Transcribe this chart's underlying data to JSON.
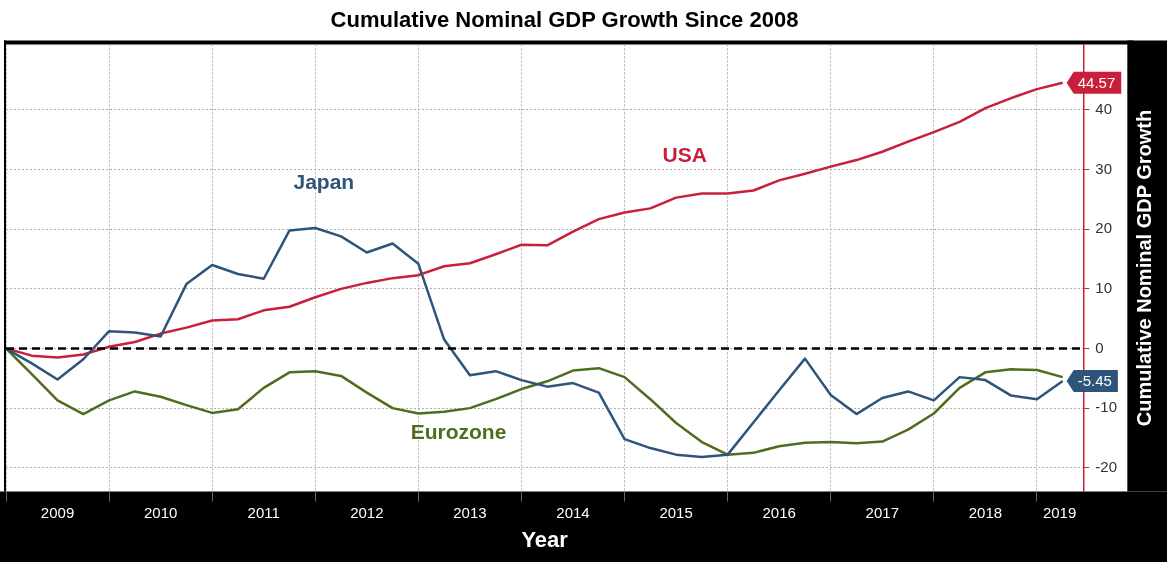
{
  "chart_data": {
    "type": "line",
    "title": "Cumulative Nominal GDP Growth Since 2008",
    "xlabel": "Year",
    "ylabel": "Cumulative Nominal GDP Growth",
    "x": [
      2009,
      2009.25,
      2009.5,
      2009.75,
      2010,
      2010.25,
      2010.5,
      2010.75,
      2011,
      2011.25,
      2011.5,
      2011.75,
      2012,
      2012.25,
      2012.5,
      2012.75,
      2013,
      2013.25,
      2013.5,
      2013.75,
      2014,
      2014.25,
      2014.5,
      2014.75,
      2015,
      2015.25,
      2015.5,
      2015.75,
      2016,
      2016.25,
      2016.5,
      2016.75,
      2017,
      2017.25,
      2017.5,
      2017.75,
      2018,
      2018.25,
      2018.5,
      2018.75,
      2019,
      2019.25
    ],
    "series": [
      {
        "name": "Japan",
        "color": "#2f5479",
        "values": [
          0,
          -2.5,
          -5.2,
          -1.8,
          2.9,
          2.7,
          2.0,
          10.8,
          14.0,
          12.5,
          11.7,
          19.8,
          20.2,
          18.8,
          16.1,
          17.6,
          14.2,
          1.5,
          -4.5,
          -3.8,
          -5.3,
          -6.4,
          -5.8,
          -7.4,
          -15.2,
          -16.7,
          -17.8,
          -18.2,
          -17.8,
          -12.4,
          -7.0,
          -1.7,
          -7.8,
          -11.0,
          -8.3,
          -7.2,
          -8.7,
          -4.8,
          -5.3,
          -7.9,
          -8.5,
          -5.45
        ],
        "value_labels": [
          null,
          null,
          null,
          null,
          null,
          null,
          null,
          null,
          null,
          null,
          null,
          null,
          null,
          null,
          null,
          null,
          null,
          null,
          null,
          null,
          null,
          null,
          null,
          null,
          null,
          null,
          null,
          null,
          null,
          null,
          null,
          null,
          null,
          null,
          null,
          null,
          null,
          null,
          null,
          null,
          null,
          "-5.45"
        ]
      },
      {
        "name": "USA",
        "color": "#c8203a",
        "values": [
          0,
          -1.2,
          -1.5,
          -1.0,
          0.3,
          1.1,
          2.5,
          3.5,
          4.7,
          4.9,
          6.4,
          7.0,
          8.6,
          10.0,
          11.0,
          11.8,
          12.3,
          13.8,
          14.3,
          15.8,
          17.4,
          17.3,
          19.6,
          21.7,
          22.8,
          23.5,
          25.3,
          26.0,
          26.0,
          26.5,
          28.2,
          29.3,
          30.5,
          31.6,
          33.0,
          34.7,
          36.3,
          38.0,
          40.3,
          42.0,
          43.5,
          44.57
        ],
        "value_labels": [
          null,
          null,
          null,
          null,
          null,
          null,
          null,
          null,
          null,
          null,
          null,
          null,
          null,
          null,
          null,
          null,
          null,
          null,
          null,
          null,
          null,
          null,
          null,
          null,
          null,
          null,
          null,
          null,
          null,
          null,
          null,
          null,
          null,
          null,
          null,
          null,
          null,
          null,
          null,
          null,
          null,
          "44.57"
        ]
      },
      {
        "name": "Eurozone",
        "color": "#4e6e1e",
        "values": [
          0,
          -4.3,
          -8.7,
          -11.0,
          -8.7,
          -7.2,
          -8.1,
          -9.5,
          -10.8,
          -10.2,
          -6.6,
          -4.0,
          -3.8,
          -4.6,
          -7.4,
          -10.0,
          -10.9,
          -10.6,
          -10.0,
          -8.5,
          -6.8,
          -5.5,
          -3.7,
          -3.3,
          -4.8,
          -8.5,
          -12.5,
          -15.7,
          -17.8,
          -17.5,
          -16.4,
          -15.8,
          -15.7,
          -15.9,
          -15.6,
          -13.6,
          -10.9,
          -6.6,
          -4.0,
          -3.5,
          -3.6,
          -4.8
        ]
      }
    ],
    "xlim": [
      2009,
      2019.45
    ],
    "xticks": [
      {
        "value": 2009,
        "label": null
      },
      {
        "value": 2009.5,
        "label": "2009"
      },
      {
        "value": 2010,
        "label": null
      },
      {
        "value": 2010.5,
        "label": "2010"
      },
      {
        "value": 2011,
        "label": null
      },
      {
        "value": 2011.5,
        "label": "2011"
      },
      {
        "value": 2012,
        "label": null
      },
      {
        "value": 2012.5,
        "label": "2012"
      },
      {
        "value": 2013,
        "label": null
      },
      {
        "value": 2013.5,
        "label": "2013"
      },
      {
        "value": 2014,
        "label": null
      },
      {
        "value": 2014.5,
        "label": "2014"
      },
      {
        "value": 2015,
        "label": null
      },
      {
        "value": 2015.5,
        "label": "2015"
      },
      {
        "value": 2016,
        "label": null
      },
      {
        "value": 2016.5,
        "label": "2016"
      },
      {
        "value": 2017,
        "label": null
      },
      {
        "value": 2017.5,
        "label": "2017"
      },
      {
        "value": 2018,
        "label": null
      },
      {
        "value": 2018.5,
        "label": "2018"
      },
      {
        "value": 2019,
        "label": null
      },
      {
        "value": 2019.22,
        "label": "2019"
      }
    ],
    "ylim": [
      -24,
      51
    ],
    "yticks": [
      -20,
      -10,
      0,
      10,
      20,
      30,
      40
    ],
    "ref_lines": [
      {
        "axis": "y",
        "value": 0,
        "color": "#000000",
        "line_style": "dashed"
      }
    ],
    "grid": true,
    "legend": false,
    "marker": "none",
    "line_style": "solid"
  }
}
